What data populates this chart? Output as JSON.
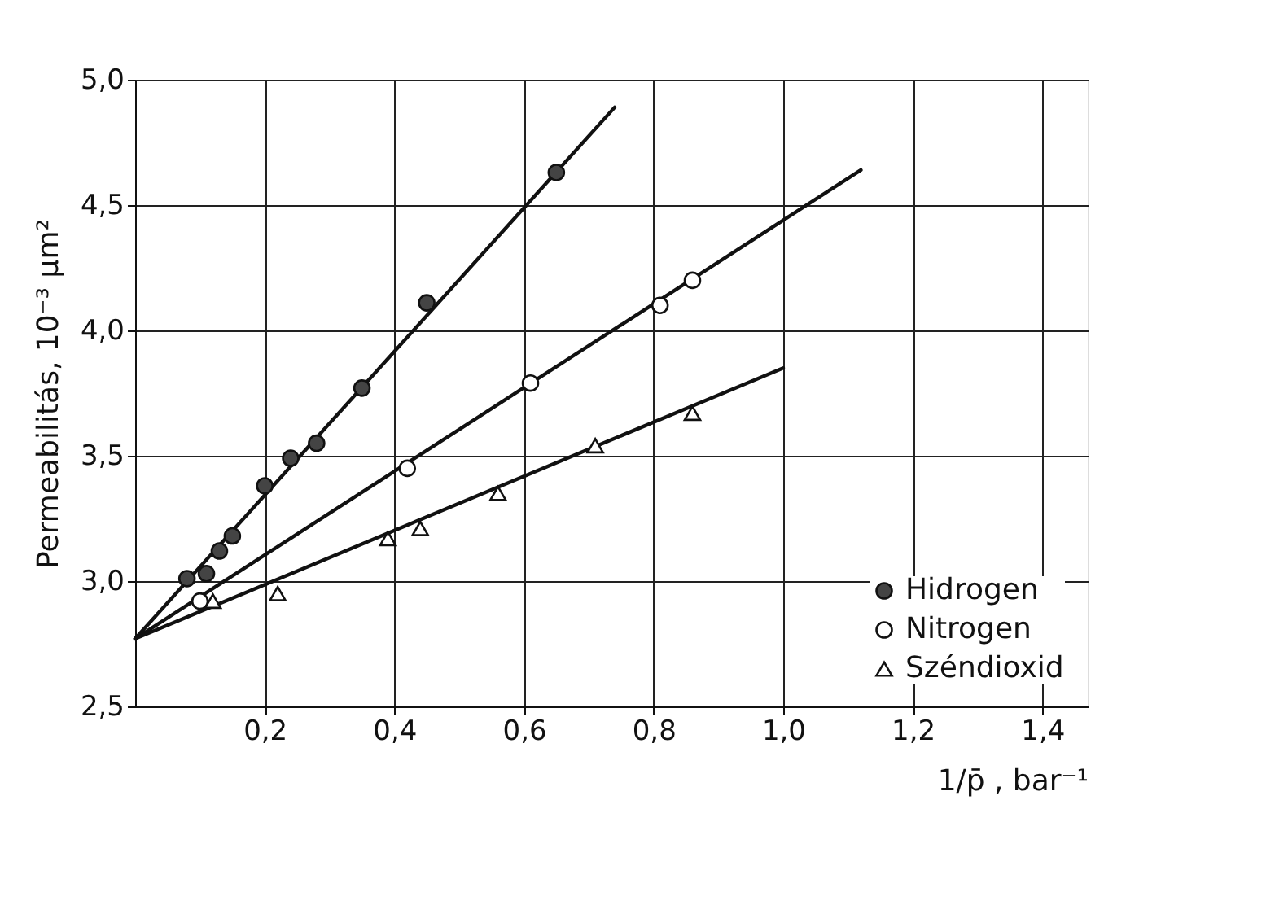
{
  "chart_data": {
    "type": "scatter",
    "xlabel": "1/p̄ , bar⁻¹",
    "ylabel": "Permeabilitás, 10⁻³ µm²",
    "xlim": [
      0,
      1.47
    ],
    "ylim": [
      2.5,
      5.0
    ],
    "xticks": [
      {
        "value": 0.2,
        "label": "0,2"
      },
      {
        "value": 0.4,
        "label": "0,4"
      },
      {
        "value": 0.6,
        "label": "0,6"
      },
      {
        "value": 0.8,
        "label": "0,8"
      },
      {
        "value": 1.0,
        "label": "1,0"
      },
      {
        "value": 1.2,
        "label": "1,2"
      },
      {
        "value": 1.4,
        "label": "1,4"
      }
    ],
    "yticks": [
      {
        "value": 2.5,
        "label": "2,5"
      },
      {
        "value": 3.0,
        "label": "3,0"
      },
      {
        "value": 3.5,
        "label": "3,5"
      },
      {
        "value": 4.0,
        "label": "4,0"
      },
      {
        "value": 4.5,
        "label": "4,5"
      },
      {
        "value": 5.0,
        "label": "5,0"
      }
    ],
    "grid": true,
    "legend": "bottom right",
    "series": [
      {
        "type": "line",
        "color": "#111111",
        "marker": "none",
        "line_style": "solid",
        "x": [
          0,
          0.74
        ],
        "values": [
          2.77,
          4.89
        ]
      },
      {
        "type": "line",
        "color": "#111111",
        "marker": "none",
        "line_style": "solid",
        "x": [
          0,
          1.12
        ],
        "values": [
          2.77,
          4.64
        ]
      },
      {
        "type": "line",
        "color": "#111111",
        "marker": "none",
        "line_style": "solid",
        "x": [
          0,
          1.0
        ],
        "values": [
          2.77,
          3.85
        ]
      },
      {
        "name": "Hidrogen",
        "color": "#444444",
        "marker": "circle",
        "x": [
          0.08,
          0.11,
          0.13,
          0.15,
          0.2,
          0.24,
          0.28,
          0.35,
          0.45,
          0.65
        ],
        "values": [
          3.01,
          3.03,
          3.12,
          3.18,
          3.38,
          3.49,
          3.55,
          3.77,
          4.11,
          4.63
        ]
      },
      {
        "name": "Nitrogen",
        "color": "#ffffff",
        "marker": "circle",
        "x": [
          0.1,
          0.42,
          0.61,
          0.81,
          0.86
        ],
        "values": [
          2.92,
          3.45,
          3.79,
          4.1,
          4.2
        ]
      },
      {
        "name": "Széndioxid",
        "color": "#ffffff",
        "marker": "triangle",
        "x": [
          0.12,
          0.22,
          0.39,
          0.44,
          0.56,
          0.71,
          0.86
        ],
        "values": [
          2.92,
          2.95,
          3.17,
          3.21,
          3.35,
          3.54,
          3.67
        ]
      }
    ]
  }
}
